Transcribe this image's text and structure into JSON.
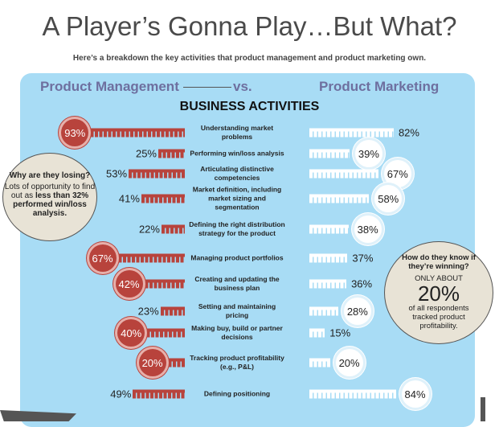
{
  "title": "A Player’s Gonna Play…But What?",
  "subtitle": "Here’s a breakdown the key activities that product management and product marketing own.",
  "left_header": "Product Management",
  "vs": "vs.",
  "right_header": "Product Marketing",
  "section_title": "BUSINESS ACTIVITIES",
  "callout_left": {
    "question": "Why are they losing?",
    "text1": "Lots of opportunity to find out as ",
    "bold": "less than 32% performed win/loss analysis."
  },
  "callout_right": {
    "question": "How do they know if they’re winning?",
    "pre": "ONLY ABOUT",
    "big": "20%",
    "post": "of all respondents tracked product profitability."
  },
  "colors": {
    "pm": "#b8433c",
    "pmk": "#ffffff",
    "panel": "#a8dcf5",
    "header": "#6e6f9f"
  },
  "chart_data": {
    "type": "bar",
    "title": "BUSINESS ACTIVITIES",
    "categories": [
      "Understanding market problems",
      "Performing win/loss analysis",
      "Articulating distinctive competencies",
      "Market definition, including market sizing and segmentation",
      "Defining the right distribution strategy for the product",
      "Managing product portfolios",
      "Creating and updating the business plan",
      "Setting and maintaining pricing",
      "Making buy, build or partner decisions",
      "Tracking product profitability (e.g., P&L)",
      "Defining positioning"
    ],
    "series": [
      {
        "name": "Product Management",
        "values": [
          93,
          25,
          53,
          41,
          22,
          67,
          42,
          23,
          40,
          20,
          49
        ],
        "highlighted": [
          true,
          false,
          false,
          false,
          false,
          true,
          true,
          false,
          true,
          true,
          false
        ]
      },
      {
        "name": "Product Marketing",
        "values": [
          82,
          39,
          67,
          58,
          38,
          37,
          36,
          28,
          15,
          20,
          84
        ],
        "highlighted": [
          false,
          true,
          true,
          true,
          true,
          false,
          false,
          true,
          false,
          true,
          true
        ]
      }
    ],
    "xlim": [
      0,
      100
    ]
  }
}
